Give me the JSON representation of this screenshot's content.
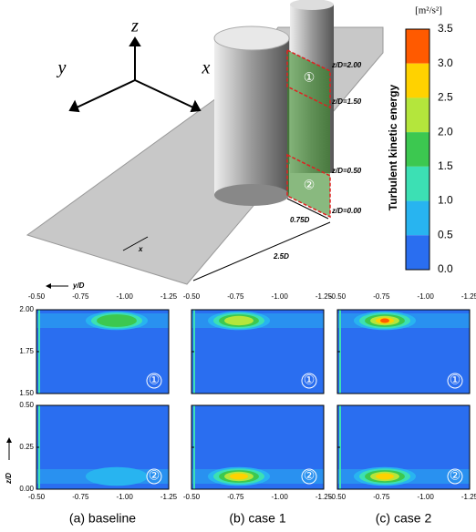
{
  "schematic": {
    "axes": {
      "z": "z",
      "y": "y",
      "x": "x"
    },
    "annotations": {
      "z200": "z/D=2.00",
      "z150": "z/D=1.50",
      "z050": "z/D=0.50",
      "z000": "z/D=0.00",
      "width": "0.75D",
      "length": "2.5D",
      "flow": "x"
    },
    "markers": [
      "①",
      "②"
    ]
  },
  "colorbar": {
    "unit": "[m²/s²]",
    "label": "Turbulent kinetic energy",
    "ticks": [
      "3.5",
      "3.0",
      "2.5",
      "2.0",
      "1.5",
      "1.0",
      "0.5",
      "0.0"
    ],
    "colors": [
      "#ff5a00",
      "#ffd200",
      "#b4e63c",
      "#3cc850",
      "#3ce0b4",
      "#28b4f0",
      "#2a6ef0"
    ]
  },
  "panels": {
    "x_axis_label": "y/D",
    "z_axis_label": "z/D",
    "x_ticks": [
      "-0.50",
      "-0.75",
      "-1.00",
      "-1.25"
    ],
    "upper_z_ticks": [
      "2.00",
      "1.75",
      "1.50"
    ],
    "lower_z_ticks": [
      "0.50",
      "0.25",
      "0.00"
    ],
    "region_labels": [
      "①",
      "②"
    ],
    "columns": [
      {
        "caption": "(a) baseline"
      },
      {
        "caption": "(b) case 1"
      },
      {
        "caption": "(c) case 2"
      }
    ]
  }
}
